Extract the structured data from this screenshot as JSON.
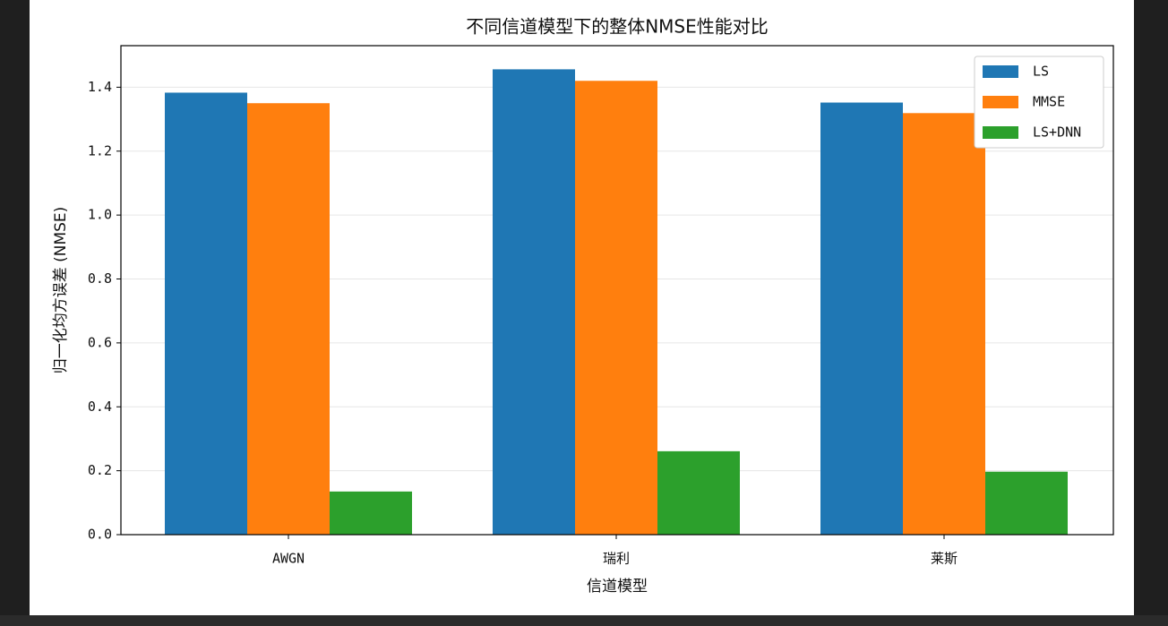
{
  "chart_data": {
    "type": "bar",
    "title": "不同信道模型下的整体NMSE性能对比",
    "xlabel": "信道模型",
    "ylabel": "归一化均方误差 (NMSE)",
    "categories": [
      "AWGN",
      "瑞利",
      "莱斯"
    ],
    "series": [
      {
        "name": "LS",
        "color": "#1f77b4",
        "values": [
          1.383,
          1.456,
          1.352
        ]
      },
      {
        "name": "MMSE",
        "color": "#ff7f0e",
        "values": [
          1.35,
          1.42,
          1.319
        ]
      },
      {
        "name": "LS+DNN",
        "color": "#2ca02c",
        "values": [
          0.135,
          0.261,
          0.197
        ]
      }
    ],
    "ylim": [
      0,
      1.53
    ],
    "yticks": [
      {
        "value": 0,
        "label": "0.0"
      },
      0.2,
      0.4,
      0.6,
      0.8,
      {
        "value": 1,
        "label": "1.0"
      },
      1.2,
      1.4
    ],
    "grid": true,
    "legend": "upper right"
  }
}
